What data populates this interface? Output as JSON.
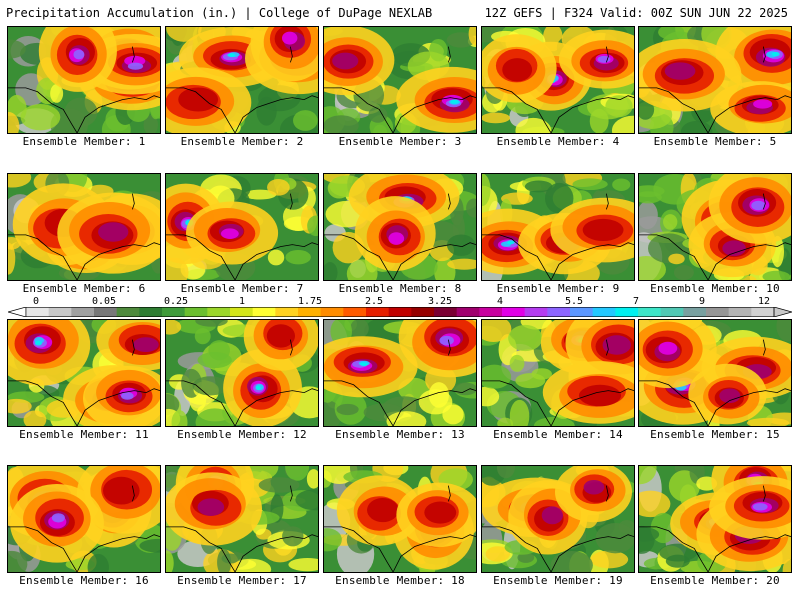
{
  "header": {
    "left_title": "Precipitation Accumulation (in.) | College of DuPage NEXLAB",
    "right_title": "12Z GEFS | F324 Valid: 00Z SUN JUN 22 2025"
  },
  "panel_label_prefix": "Ensemble Member: ",
  "members": [
    {
      "label": "Ensemble Member: 1"
    },
    {
      "label": "Ensemble Member: 2"
    },
    {
      "label": "Ensemble Member: 3"
    },
    {
      "label": "Ensemble Member: 4"
    },
    {
      "label": "Ensemble Member: 5"
    },
    {
      "label": "Ensemble Member: 6"
    },
    {
      "label": "Ensemble Member: 7"
    },
    {
      "label": "Ensemble Member: 8"
    },
    {
      "label": "Ensemble Member: 9"
    },
    {
      "label": "Ensemble Member: 10"
    },
    {
      "label": "Ensemble Member: 11"
    },
    {
      "label": "Ensemble Member: 12"
    },
    {
      "label": "Ensemble Member: 13"
    },
    {
      "label": "Ensemble Member: 14"
    },
    {
      "label": "Ensemble Member: 15"
    },
    {
      "label": "Ensemble Member: 16"
    },
    {
      "label": "Ensemble Member: 17"
    },
    {
      "label": "Ensemble Member: 18"
    },
    {
      "label": "Ensemble Member: 19"
    },
    {
      "label": "Ensemble Member: 20"
    }
  ],
  "colorbar": {
    "tick_labels": [
      "0",
      "0.05",
      "0.25",
      "1",
      "1.75",
      "2.5",
      "3.25",
      "4",
      "5.5",
      "7",
      "9",
      "12"
    ],
    "colors": [
      "#e6e6e6",
      "#c8c8c8",
      "#a0a0a0",
      "#787878",
      "#4e8a3c",
      "#2e7d32",
      "#3f9b3a",
      "#6bbf2e",
      "#9bd62a",
      "#d4e619",
      "#ffff33",
      "#ffd21f",
      "#ffb000",
      "#ff8c00",
      "#ff5a00",
      "#e61e00",
      "#c00000",
      "#960000",
      "#7a0033",
      "#a0006e",
      "#c8009f",
      "#e100e6",
      "#b43cf0",
      "#8c64ff",
      "#5a96ff",
      "#23c8ff",
      "#00f0f0",
      "#3ce6c8",
      "#50c8b4",
      "#78a0a0",
      "#969696",
      "#b4b4b4",
      "#d2d2d2"
    ]
  }
}
